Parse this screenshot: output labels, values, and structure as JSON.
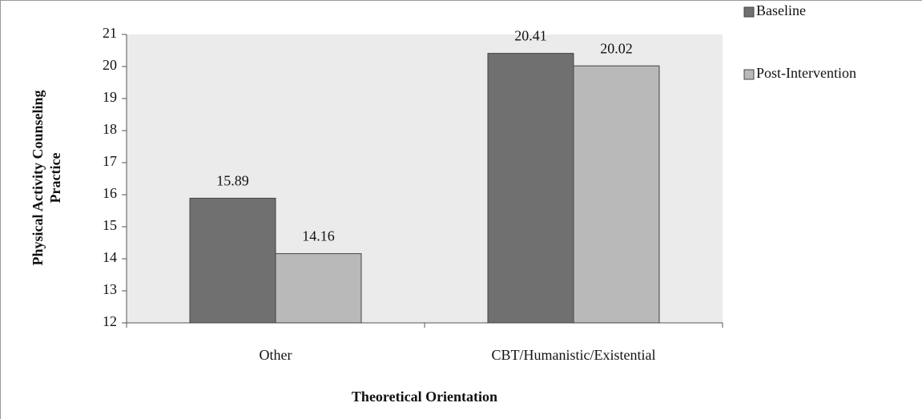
{
  "chart_data": {
    "type": "bar",
    "x_label": "Theoretical Orientation",
    "y_label": "Physical Activity Counseling Practice",
    "categories": [
      "Other",
      "CBT/Humanistic/Existential"
    ],
    "series": [
      {
        "name": "Baseline",
        "color": "#707070",
        "values": [
          15.89,
          20.41
        ]
      },
      {
        "name": "Post-Intervention",
        "color": "#b9b9b9",
        "values": [
          14.16,
          20.02
        ]
      }
    ],
    "ylim": [
      12,
      21
    ],
    "yticks": [
      12,
      13,
      14,
      15,
      16,
      17,
      18,
      19,
      20,
      21
    ],
    "legend": "right",
    "plot_background": "#ebebeb"
  }
}
